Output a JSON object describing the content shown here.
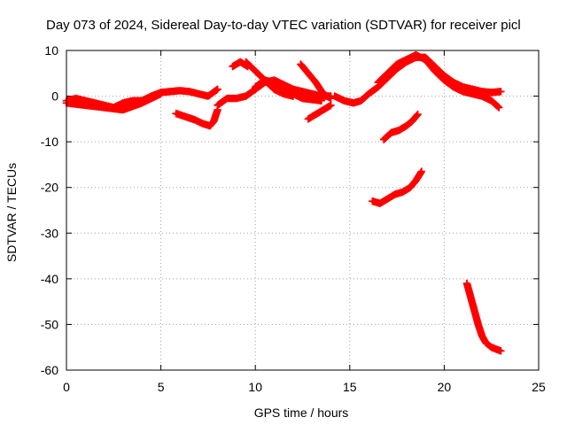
{
  "chart_data": {
    "type": "scatter",
    "title": "Day 073 of 2024, Sidereal Day-to-day VTEC variation (SDTVAR) for receiver picl",
    "xlabel": "GPS time / hours",
    "ylabel": "SDTVAR / TECUs",
    "xlim": [
      0,
      25
    ],
    "ylim": [
      -60,
      10
    ],
    "xticks": [
      0,
      5,
      10,
      15,
      20,
      25
    ],
    "yticks": [
      -60,
      -50,
      -40,
      -30,
      -20,
      -10,
      0,
      10
    ],
    "grid": true,
    "point_marker": "plus",
    "color": "#ff0000",
    "series": [
      {
        "name": "arc-main-1",
        "points": [
          [
            0,
            -1
          ],
          [
            0.5,
            -0.5
          ],
          [
            1,
            -1
          ],
          [
            1.5,
            -1.5
          ],
          [
            2,
            -2
          ],
          [
            2.5,
            -2.5
          ],
          [
            3,
            -1.5
          ],
          [
            3.5,
            -1
          ],
          [
            4,
            -1
          ],
          [
            4.5,
            0
          ],
          [
            5,
            0.8
          ],
          [
            5.5,
            1
          ],
          [
            6,
            1.2
          ],
          [
            6.5,
            1
          ],
          [
            7,
            0.5
          ],
          [
            7.5,
            0
          ],
          [
            8,
            1.5
          ]
        ]
      },
      {
        "name": "arc-main-2",
        "points": [
          [
            0,
            -1.5
          ],
          [
            1,
            -2
          ],
          [
            2,
            -2.5
          ],
          [
            3,
            -3
          ],
          [
            4,
            -1.5
          ],
          [
            5,
            0.5
          ]
        ]
      },
      {
        "name": "arc-dip",
        "points": [
          [
            5.8,
            -3.8
          ],
          [
            6.3,
            -4.5
          ],
          [
            6.8,
            -5.2
          ],
          [
            7.2,
            -6
          ],
          [
            7.6,
            -6.5
          ],
          [
            7.8,
            -5.5
          ],
          [
            8,
            -3
          ]
        ]
      },
      {
        "name": "arc-rise-9",
        "points": [
          [
            8,
            -2
          ],
          [
            8.5,
            -0.5
          ],
          [
            9,
            -0.5
          ],
          [
            9.5,
            0
          ],
          [
            10,
            1.5
          ],
          [
            10.5,
            3
          ],
          [
            11,
            3.5
          ],
          [
            11.5,
            2.5
          ],
          [
            12,
            1.5
          ],
          [
            12.5,
            1
          ],
          [
            13,
            0.5
          ],
          [
            13.5,
            0
          ],
          [
            14,
            0
          ]
        ]
      },
      {
        "name": "arc-peak-9",
        "points": [
          [
            8.8,
            6.5
          ],
          [
            9.2,
            7.5
          ],
          [
            9.6,
            6.5
          ]
        ]
      },
      {
        "name": "arc-fall-10",
        "points": [
          [
            9.5,
            7.5
          ],
          [
            10,
            5.5
          ],
          [
            10.5,
            3.5
          ],
          [
            11,
            1.5
          ],
          [
            11.5,
            0.5
          ],
          [
            12,
            0
          ]
        ]
      },
      {
        "name": "arc-12",
        "points": [
          [
            10,
            2
          ],
          [
            10.5,
            3.5
          ],
          [
            11,
            3
          ],
          [
            11.5,
            1.5
          ],
          [
            12,
            0.5
          ],
          [
            12.5,
            -0.5
          ],
          [
            13.5,
            -1
          ]
        ]
      },
      {
        "name": "arc-13",
        "points": [
          [
            12.4,
            7
          ],
          [
            12.8,
            5
          ],
          [
            13.2,
            3
          ],
          [
            13.6,
            0.5
          ],
          [
            14,
            -0.5
          ]
        ]
      },
      {
        "name": "arc-14",
        "points": [
          [
            12.8,
            -5
          ],
          [
            13.2,
            -4
          ],
          [
            13.6,
            -3
          ],
          [
            14,
            -2
          ]
        ]
      },
      {
        "name": "arc-15",
        "points": [
          [
            14.2,
            0
          ],
          [
            14.7,
            -1
          ],
          [
            15.2,
            -1.5
          ],
          [
            15.6,
            -1
          ],
          [
            16,
            0.5
          ],
          [
            16.5,
            2
          ],
          [
            17,
            4
          ],
          [
            17.5,
            6
          ],
          [
            18,
            7.5
          ],
          [
            18.5,
            8.5
          ],
          [
            19,
            8.5
          ],
          [
            19.5,
            6.5
          ],
          [
            20,
            4.5
          ],
          [
            20.5,
            3
          ],
          [
            21,
            2
          ],
          [
            21.5,
            1.5
          ],
          [
            22,
            1
          ],
          [
            22.5,
            0.8
          ],
          [
            23,
            1
          ]
        ]
      },
      {
        "name": "arc-16",
        "points": [
          [
            16.5,
            3
          ],
          [
            17,
            5
          ],
          [
            17.5,
            7
          ],
          [
            18,
            8
          ],
          [
            18.5,
            9
          ],
          [
            19,
            8
          ],
          [
            19.5,
            5.5
          ],
          [
            20,
            3.5
          ],
          [
            20.5,
            2
          ],
          [
            21,
            1
          ],
          [
            21.5,
            0.5
          ],
          [
            22,
            0
          ],
          [
            22.5,
            -1
          ],
          [
            22.9,
            -2.5
          ]
        ]
      },
      {
        "name": "arc-17",
        "points": [
          [
            16.8,
            -9.5
          ],
          [
            17.2,
            -8
          ],
          [
            17.6,
            -7.5
          ],
          [
            18,
            -6.5
          ],
          [
            18.3,
            -5.5
          ],
          [
            18.6,
            -4
          ]
        ]
      },
      {
        "name": "arc-18",
        "points": [
          [
            16.2,
            -23
          ],
          [
            16.6,
            -23.5
          ],
          [
            17,
            -22.5
          ],
          [
            17.4,
            -21.5
          ],
          [
            17.8,
            -21
          ],
          [
            18.2,
            -20
          ],
          [
            18.5,
            -18.5
          ],
          [
            18.8,
            -16.5
          ]
        ]
      },
      {
        "name": "arc-21",
        "points": [
          [
            21.2,
            -41
          ],
          [
            21.4,
            -44
          ],
          [
            21.6,
            -47
          ],
          [
            21.8,
            -50
          ],
          [
            22,
            -52.5
          ],
          [
            22.2,
            -54
          ],
          [
            22.5,
            -55
          ],
          [
            22.8,
            -55.5
          ],
          [
            23,
            -55.8
          ]
        ]
      }
    ]
  }
}
